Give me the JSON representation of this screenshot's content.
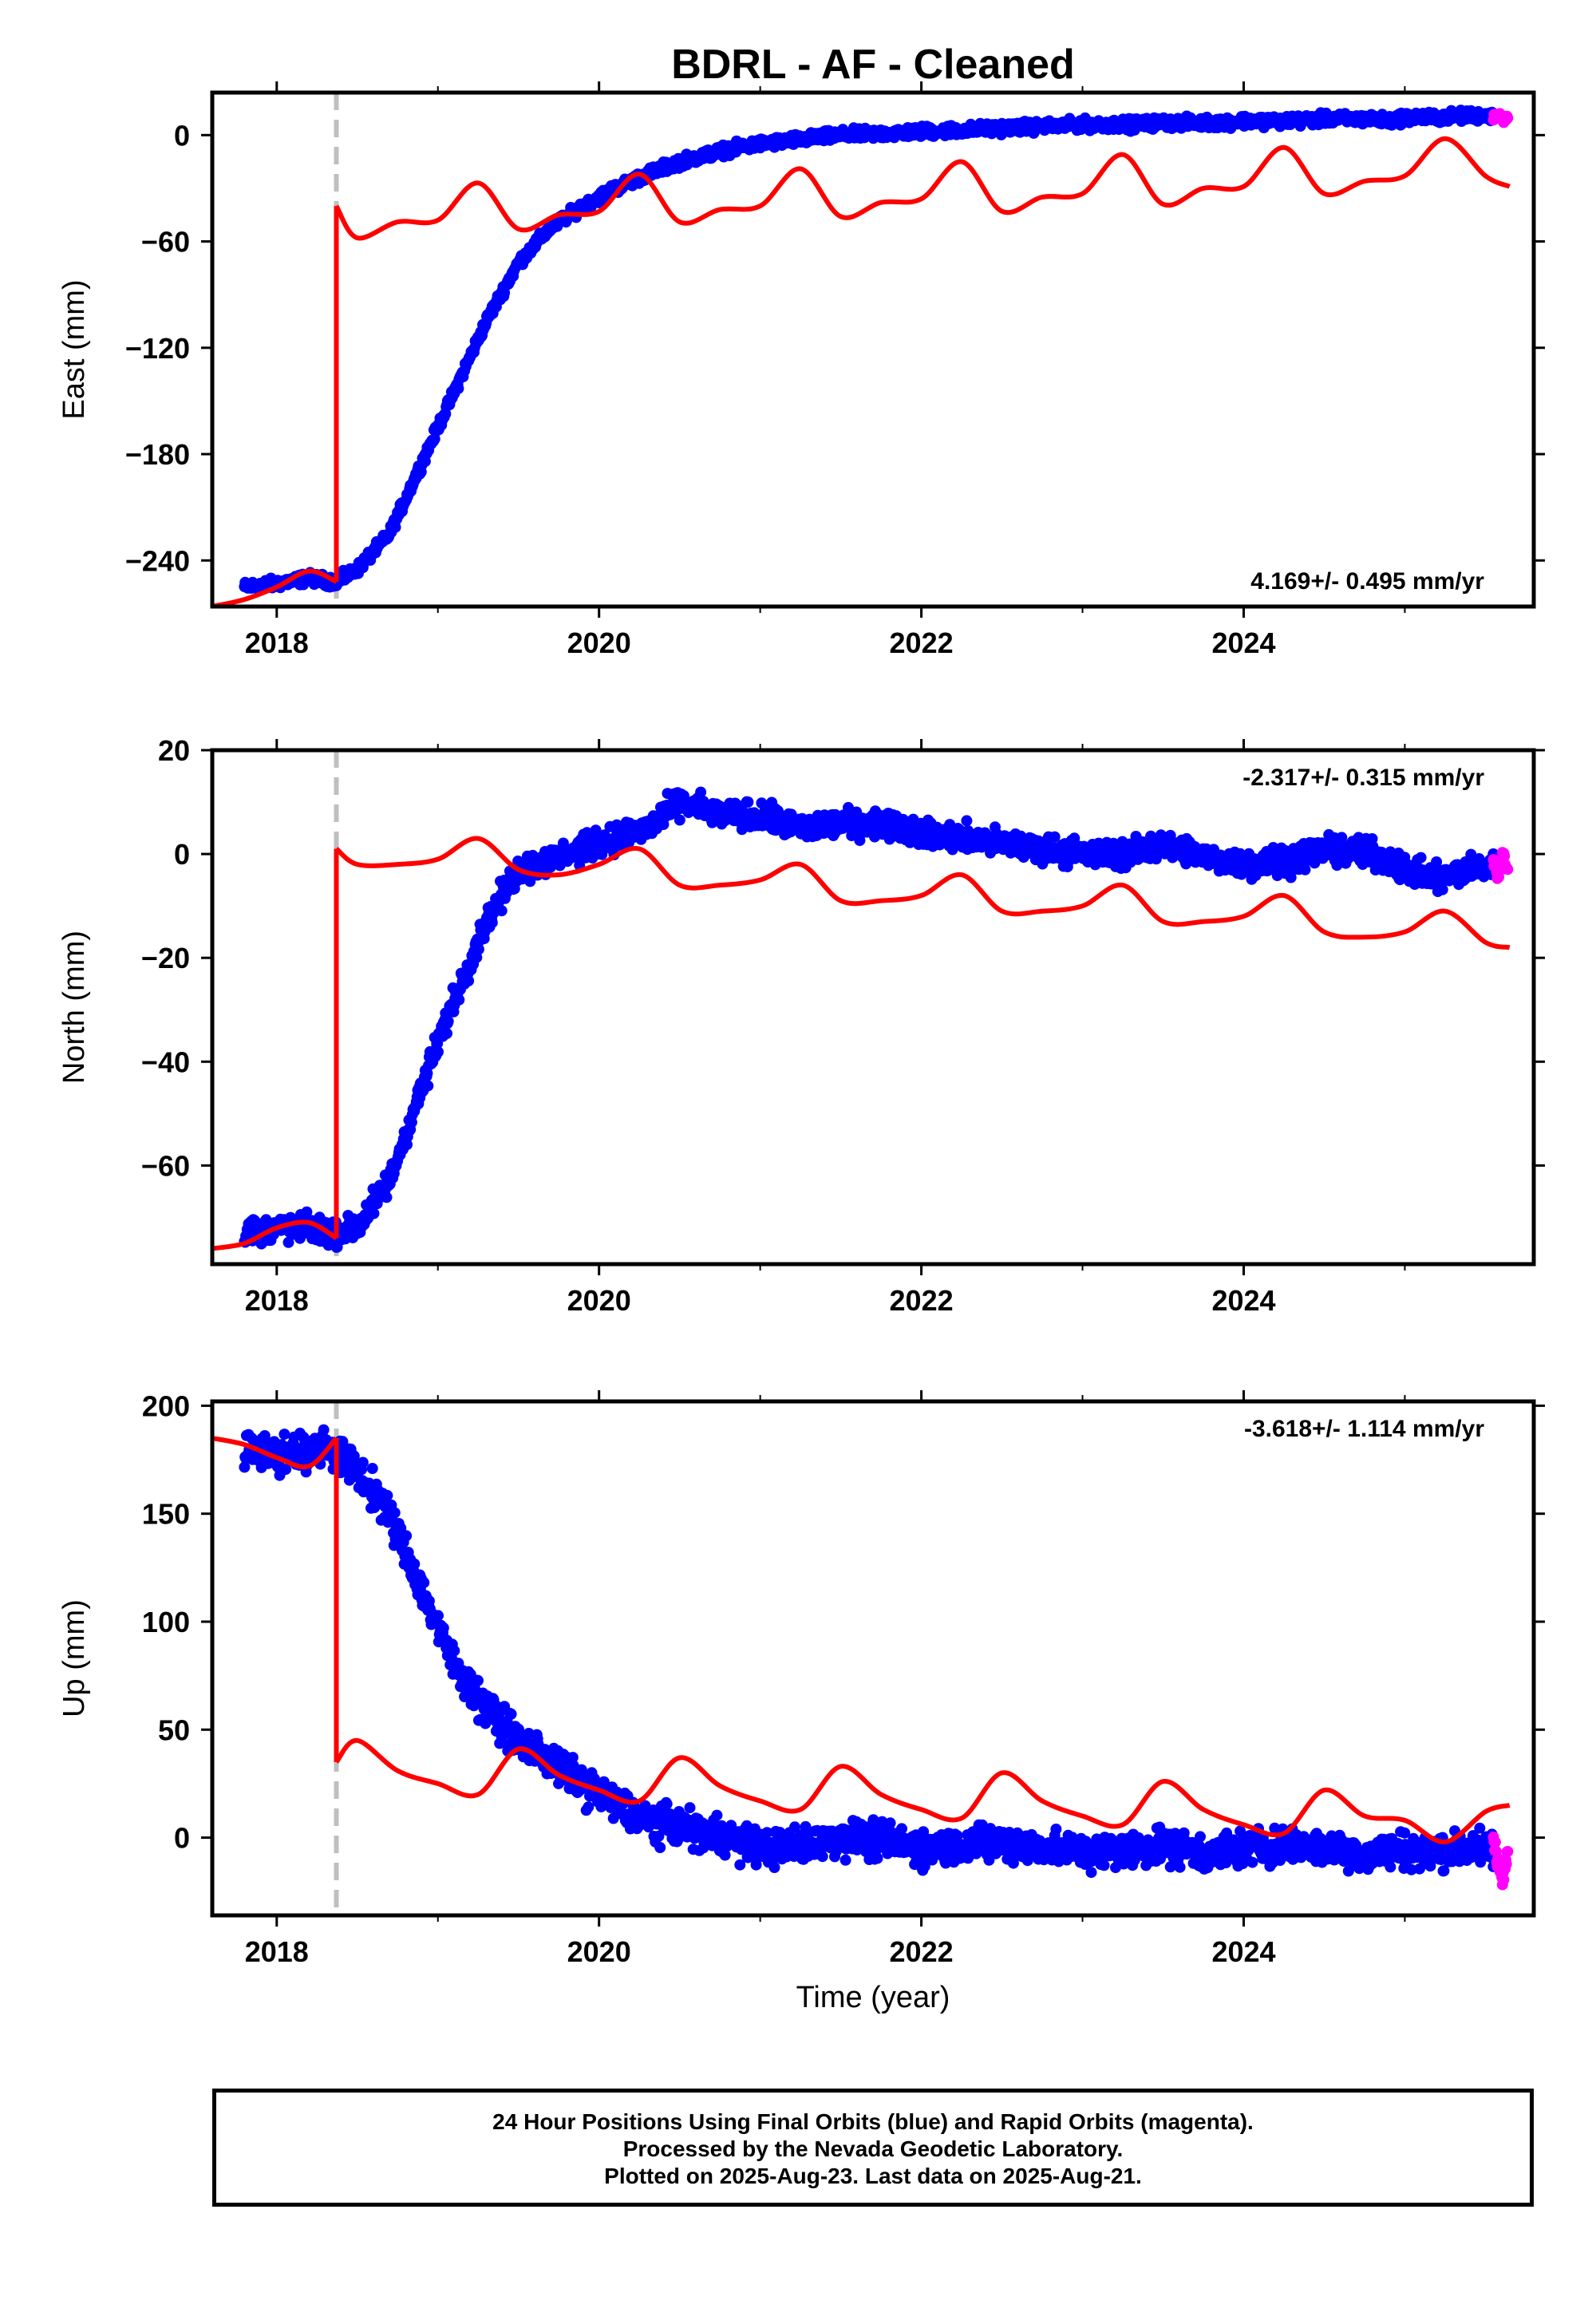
{
  "title": "BDRL  - AF - Cleaned",
  "xlabel": "Time (year)",
  "footer": {
    "line1": "24 Hour Positions Using Final Orbits (blue) and Rapid Orbits (magenta).",
    "line2": "Processed by the Nevada Geodetic Laboratory.",
    "line3": "Plotted on 2025-Aug-23. Last data on 2025-Aug-21."
  },
  "colors": {
    "final": "#0000ff",
    "rapid": "#ff00ff",
    "model": "#ff0000",
    "event_line": "#bfbfbf"
  },
  "chart_data": [
    {
      "type": "scatter",
      "panel": "east",
      "ylabel": "East (mm)",
      "rate_label": "4.169+/- 0.495 mm/yr",
      "xlim": [
        2017.6,
        2025.8
      ],
      "ylim": [
        -266,
        24
      ],
      "xticks": [
        "2018",
        "2020",
        "2022",
        "2024"
      ],
      "yticks": [
        "0",
        "−60",
        "−120",
        "−180",
        "−240"
      ],
      "event_x": 2018.37,
      "final_series": {
        "name": "Final Orbits",
        "x": [
          2017.8,
          2018.0,
          2018.2,
          2018.37,
          2018.5,
          2018.7,
          2018.9,
          2019.1,
          2019.3,
          2019.5,
          2019.7,
          2019.9,
          2020.1,
          2020.3,
          2020.5,
          2020.8,
          2021.0,
          2021.3,
          2021.5,
          2021.8,
          2022.0,
          2022.3,
          2022.5,
          2022.8,
          2023.0,
          2023.3,
          2023.5,
          2023.8,
          2024.0,
          2024.3,
          2024.5,
          2024.8,
          2024.9,
          2025.0,
          2025.2,
          2025.4,
          2025.55
        ],
        "y": [
          -255,
          -253,
          -250,
          -252,
          -245,
          -225,
          -185,
          -145,
          -105,
          -72,
          -52,
          -40,
          -30,
          -22,
          -15,
          -8,
          -5,
          -2,
          0,
          1,
          2,
          3,
          4,
          5,
          6,
          6,
          7,
          7,
          8,
          8,
          9,
          9,
          8,
          10,
          10,
          11,
          11
        ]
      },
      "rapid_series": {
        "name": "Rapid Orbits",
        "x": [
          2025.55,
          2025.58,
          2025.61,
          2025.64
        ],
        "y": [
          10,
          12,
          8,
          11
        ]
      },
      "model_series": {
        "name": "Model",
        "pre_x": [
          2017.6,
          2017.8,
          2018.0,
          2018.2,
          2018.37
        ],
        "pre_y": [
          -266,
          -262,
          -255,
          -246,
          -252
        ],
        "post_x": [
          2018.37,
          2018.5,
          2018.75,
          2019.0,
          2019.25,
          2019.5,
          2019.75,
          2020.0,
          2020.25,
          2020.5,
          2020.75,
          2021.0,
          2021.25,
          2021.5,
          2021.75,
          2022.0,
          2022.25,
          2022.5,
          2022.75,
          2023.0,
          2023.25,
          2023.5,
          2023.75,
          2024.0,
          2024.25,
          2024.5,
          2024.75,
          2025.0,
          2025.25,
          2025.5,
          2025.65
        ],
        "post_y": [
          -40,
          -58,
          -49,
          -48,
          -27,
          -53,
          -45,
          -43,
          -22,
          -49,
          -42,
          -40,
          -19,
          -46,
          -38,
          -36,
          -15,
          -43,
          -35,
          -33,
          -11,
          -39,
          -30,
          -29,
          -7,
          -33,
          -26,
          -23,
          -2,
          -23,
          -29
        ]
      }
    },
    {
      "type": "scatter",
      "panel": "north",
      "ylabel": "North (mm)",
      "rate_label": "-2.317+/- 0.315 mm/yr",
      "xlim": [
        2017.6,
        2025.8
      ],
      "ylim": [
        -79,
        20
      ],
      "xticks": [
        "2018",
        "2020",
        "2022",
        "2024"
      ],
      "yticks": [
        "20",
        "0",
        "−20",
        "−40",
        "−60"
      ],
      "event_x": 2018.37,
      "final_series": {
        "name": "Final Orbits",
        "x": [
          2017.8,
          2018.0,
          2018.2,
          2018.37,
          2018.5,
          2018.7,
          2018.9,
          2019.1,
          2019.3,
          2019.5,
          2019.7,
          2019.9,
          2020.1,
          2020.3,
          2020.5,
          2020.7,
          2021.0,
          2021.3,
          2021.5,
          2021.8,
          2022.0,
          2022.3,
          2022.5,
          2022.8,
          2023.0,
          2023.3,
          2023.5,
          2023.8,
          2024.0,
          2024.3,
          2024.5,
          2024.8,
          2025.0,
          2025.2,
          2025.4,
          2025.55
        ],
        "y": [
          -73,
          -72,
          -72,
          -73,
          -72,
          -63,
          -45,
          -28,
          -13,
          -3,
          -1,
          1,
          3,
          5,
          10,
          8,
          7,
          5,
          6,
          6,
          4,
          3,
          2,
          1,
          0,
          0,
          2,
          -1,
          -2,
          -1,
          1,
          0,
          -3,
          -5,
          -3,
          -2
        ]
      },
      "rapid_series": {
        "name": "Rapid Orbits",
        "x": [
          2025.55,
          2025.58,
          2025.61,
          2025.64
        ],
        "y": [
          -2,
          -4,
          0,
          -3
        ]
      },
      "model_series": {
        "name": "Model",
        "pre_x": [
          2017.6,
          2017.8,
          2018.0,
          2018.2,
          2018.37
        ],
        "pre_y": [
          -76,
          -75,
          -72,
          -71,
          -74
        ],
        "post_x": [
          2018.37,
          2018.5,
          2018.75,
          2019.0,
          2019.25,
          2019.5,
          2019.75,
          2020.0,
          2020.25,
          2020.5,
          2020.75,
          2021.0,
          2021.25,
          2021.5,
          2021.75,
          2022.0,
          2022.25,
          2022.5,
          2022.75,
          2023.0,
          2023.25,
          2023.5,
          2023.75,
          2024.0,
          2024.25,
          2024.5,
          2024.75,
          2025.0,
          2025.25,
          2025.5,
          2025.65
        ],
        "post_y": [
          1,
          -2,
          -2,
          -1,
          3,
          -3,
          -4,
          -2,
          1,
          -6,
          -6,
          -5,
          -2,
          -9,
          -9,
          -8,
          -4,
          -11,
          -11,
          -10,
          -6,
          -13,
          -13,
          -12,
          -8,
          -15,
          -16,
          -15,
          -11,
          -17,
          -18
        ]
      }
    },
    {
      "type": "scatter",
      "panel": "up",
      "ylabel": "Up (mm)",
      "rate_label": "-3.618+/- 1.114 mm/yr",
      "xlim": [
        2017.6,
        2025.8
      ],
      "ylim": [
        -36,
        202
      ],
      "xticks": [
        "2018",
        "2020",
        "2022",
        "2024"
      ],
      "yticks": [
        "200",
        "150",
        "100",
        "50",
        "0"
      ],
      "event_x": 2018.37,
      "final_series": {
        "name": "Final Orbits",
        "x": [
          2017.8,
          2017.9,
          2018.0,
          2018.1,
          2018.2,
          2018.3,
          2018.37,
          2018.5,
          2018.7,
          2018.9,
          2019.1,
          2019.3,
          2019.5,
          2019.7,
          2019.9,
          2020.1,
          2020.3,
          2020.5,
          2020.8,
          2021.0,
          2021.3,
          2021.5,
          2021.8,
          2022.0,
          2022.3,
          2022.5,
          2022.8,
          2023.0,
          2023.3,
          2023.5,
          2023.8,
          2024.0,
          2024.3,
          2024.5,
          2024.8,
          2025.0,
          2025.2,
          2025.4,
          2025.55
        ],
        "y": [
          178,
          182,
          176,
          180,
          177,
          182,
          178,
          170,
          150,
          115,
          80,
          60,
          45,
          35,
          25,
          15,
          8,
          5,
          0,
          -5,
          -3,
          0,
          -2,
          -5,
          -3,
          -2,
          -5,
          -7,
          -5,
          -3,
          -8,
          -5,
          -3,
          -5,
          -8,
          -5,
          -7,
          -5,
          -6
        ]
      },
      "rapid_series": {
        "name": "Rapid Orbits",
        "x": [
          2025.55,
          2025.58,
          2025.61,
          2025.64
        ],
        "y": [
          -2,
          -12,
          -20,
          -8
        ]
      },
      "model_series": {
        "name": "Model",
        "pre_x": [
          2017.6,
          2017.8,
          2018.0,
          2018.2,
          2018.37
        ],
        "pre_y": [
          185,
          182,
          176,
          172,
          185
        ],
        "post_x": [
          2018.37,
          2018.5,
          2018.75,
          2019.0,
          2019.25,
          2019.5,
          2019.75,
          2020.0,
          2020.25,
          2020.5,
          2020.75,
          2021.0,
          2021.25,
          2021.5,
          2021.75,
          2022.0,
          2022.25,
          2022.5,
          2022.75,
          2023.0,
          2023.25,
          2023.5,
          2023.75,
          2024.0,
          2024.25,
          2024.5,
          2024.75,
          2025.0,
          2025.25,
          2025.5,
          2025.65
        ],
        "post_y": [
          35,
          45,
          31,
          25,
          20,
          41,
          29,
          22,
          17,
          37,
          24,
          17,
          13,
          33,
          20,
          13,
          9,
          30,
          17,
          10,
          6,
          26,
          13,
          6,
          2,
          22,
          10,
          8,
          -2,
          12,
          15
        ]
      }
    }
  ]
}
